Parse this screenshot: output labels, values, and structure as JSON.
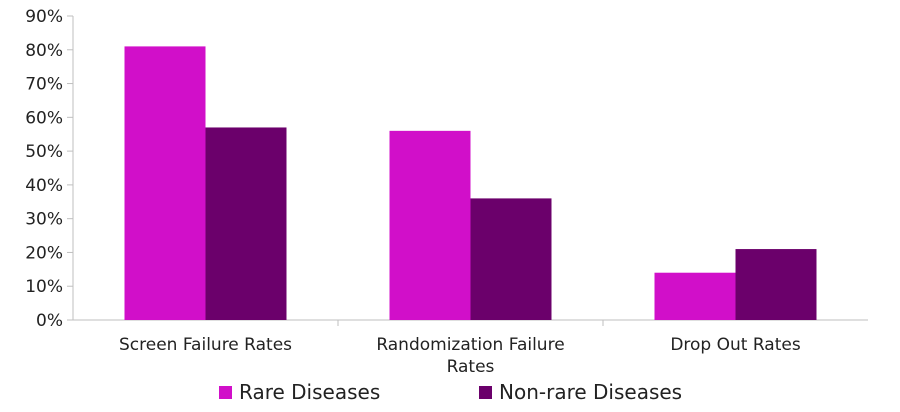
{
  "chart_data": {
    "type": "bar",
    "categories": [
      [
        "Screen Failure Rates"
      ],
      [
        "Randomization Failure",
        "Rates"
      ],
      [
        "Drop Out Rates"
      ]
    ],
    "series": [
      {
        "name": "Rare Diseases",
        "color": "#d10fc9",
        "values": [
          81,
          56,
          14
        ]
      },
      {
        "name": "Non-rare Diseases",
        "color": "#6b006b",
        "values": [
          57,
          36,
          21
        ]
      }
    ],
    "yticks": [
      "0%",
      "10%",
      "20%",
      "30%",
      "40%",
      "50%",
      "60%",
      "70%",
      "80%",
      "90%"
    ],
    "ylim": [
      0,
      90
    ],
    "unit": "%",
    "grid": false,
    "legend_position": "bottom-center",
    "axis_color": "#bfbfbf"
  }
}
